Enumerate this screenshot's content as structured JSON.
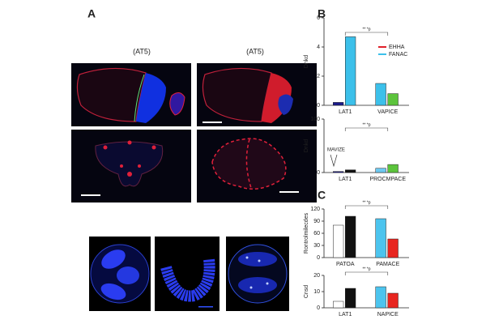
{
  "panels": {
    "a": "A",
    "b": "B",
    "c": "C"
  },
  "image_labels": [
    "(AT5)",
    "(AT5)"
  ],
  "chart_data": [
    {
      "type": "bar",
      "y_label": "Dnkd",
      "ylim": [
        0,
        6
      ],
      "yticks": [
        0,
        2,
        4,
        6
      ],
      "bracket": "** *p",
      "groups": [
        {
          "label": "LAT1",
          "values": [
            0.2,
            4.7
          ],
          "colors": [
            "#1a1a8c",
            "#3cc0ea"
          ]
        },
        {
          "label": "VAPICE",
          "values": [
            1.5,
            0.8
          ],
          "colors": [
            "#3cc0ea",
            "#5cc43c"
          ]
        }
      ],
      "legend": [
        {
          "name": "EHHA",
          "color": "#e0202a"
        },
        {
          "name": "FANAC",
          "color": "#3cc0ea"
        }
      ]
    },
    {
      "type": "bar",
      "y_label": "Dnkd",
      "ylim": [
        0,
        100
      ],
      "yticks": [
        0,
        100
      ],
      "bracket": "** *p",
      "annotation": "MAVIZE",
      "groups": [
        {
          "label": "LAT1",
          "values": [
            2,
            5
          ],
          "colors": [
            "#1a1a8c",
            "#111111"
          ]
        },
        {
          "label": "PROCMPACE",
          "values": [
            8,
            15
          ],
          "colors": [
            "#6cc8f0",
            "#5cc43c"
          ]
        }
      ]
    },
    {
      "type": "bar",
      "y_label": "Rontrolmilecdes",
      "ylim": [
        0,
        120
      ],
      "yticks": [
        0,
        30,
        60,
        90,
        120
      ],
      "bracket": "** *p",
      "groups": [
        {
          "label": "PATOA",
          "values": [
            80,
            102
          ],
          "colors": [
            "#ffffff",
            "#111111"
          ]
        },
        {
          "label": "PAMACE",
          "values": [
            96,
            46
          ],
          "colors": [
            "#4cc4ee",
            "#e8251f"
          ]
        }
      ]
    },
    {
      "type": "bar",
      "y_label": "Cnsd",
      "ylim": [
        0,
        20
      ],
      "yticks": [
        0,
        10,
        20
      ],
      "bracket": "** *p",
      "groups": [
        {
          "label": "LAT1",
          "values": [
            4,
            12
          ],
          "colors": [
            "#ffffff",
            "#111111"
          ]
        },
        {
          "label": "NAPICE",
          "values": [
            13,
            9
          ],
          "colors": [
            "#4cc4ee",
            "#e8251f"
          ]
        }
      ]
    }
  ]
}
